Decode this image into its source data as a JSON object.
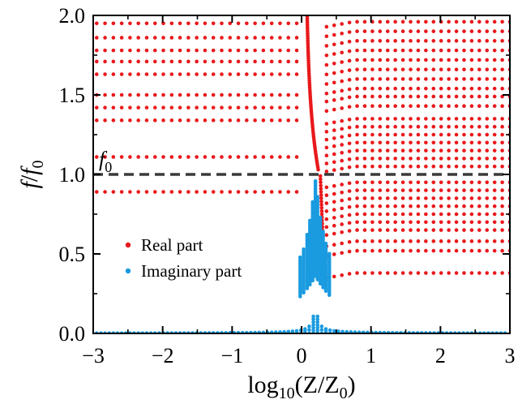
{
  "chart_data": {
    "type": "scatter",
    "title": "",
    "xlabel": {
      "base": "log",
      "sub1": "10",
      "open": "(Z/Z",
      "sub2": "0",
      "close": ")"
    },
    "ylabel": {
      "f1": "f",
      "slash": "/",
      "f2": "f",
      "sub": "0"
    },
    "xlim": [
      -3,
      3
    ],
    "ylim": [
      0,
      2
    ],
    "x_ticks": [
      -3,
      -2,
      -1,
      0,
      1,
      2,
      3
    ],
    "x_tick_labels": [
      "−3",
      "−2",
      "−1",
      "0",
      "1",
      "2",
      "3"
    ],
    "y_ticks": [
      0,
      0.5,
      1,
      1.5,
      2
    ],
    "y_tick_labels": [
      "0.0",
      "0.5",
      "1.0",
      "1.5",
      "2.0"
    ],
    "grid": false,
    "legend_position": "center-left",
    "reference_line": {
      "y": 1.0,
      "style": "dashed",
      "color": "#3a3a3a",
      "label_main": "f",
      "label_sub": "0"
    },
    "series": [
      {
        "name": "Real part",
        "color": "#e8191c",
        "left_levels": [
          0.89,
          1.11,
          1.34,
          1.42,
          1.5,
          1.63,
          1.71,
          1.78,
          1.86,
          1.95
        ],
        "right_levels": [
          0.38,
          0.52,
          0.58,
          0.65,
          0.7,
          0.75,
          0.8,
          0.85,
          0.9,
          0.95,
          1.05,
          1.1,
          1.15,
          1.2,
          1.25,
          1.3,
          1.35,
          1.43,
          1.49,
          1.54,
          1.6,
          1.66,
          1.72,
          1.78,
          1.84,
          1.9,
          1.96
        ]
      },
      {
        "name": "Imaginary part",
        "color": "#1a9be0",
        "peak_x": 0.2,
        "peak_y": 0.97
      }
    ]
  }
}
